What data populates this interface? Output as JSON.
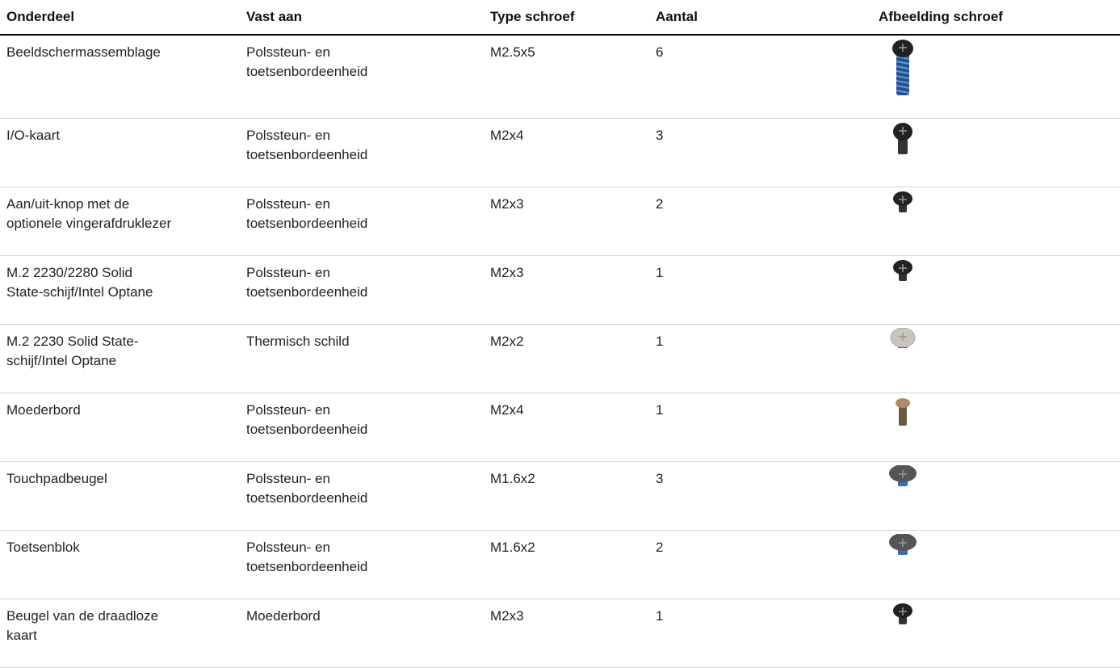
{
  "table": {
    "header": [
      "Onderdeel",
      "Vast aan",
      "Type schroef",
      "Aantal",
      "Afbeelding schroef"
    ],
    "rows": [
      [
        [
          "Beeldschermassemblage"
        ],
        [
          "Polssteun- en",
          "toetsenbordeenheid"
        ],
        "M2.5x5",
        6
      ],
      [
        [
          "I/O-kaart"
        ],
        [
          "Polssteun- en",
          "toetsenbordeenheid"
        ],
        "M2x4",
        3
      ],
      [
        [
          "Aan/uit-knop met de",
          "optionele vingerafdruklezer"
        ],
        [
          "Polssteun- en",
          "toetsenbordeenheid"
        ],
        "M2x3",
        2
      ],
      [
        [
          "M.2 2230/2280 Solid",
          "State-schijf/Intel Optane"
        ],
        [
          "Polssteun- en",
          "toetsenbordeenheid"
        ],
        "M2x3",
        1
      ],
      [
        [
          "M.2 2230 Solid State-",
          "schijf/Intel Optane"
        ],
        [
          "Thermisch schild"
        ],
        "M2x2",
        1
      ],
      [
        [
          "Moederbord"
        ],
        [
          "Polssteun- en",
          "toetsenbordeenheid"
        ],
        "M2x4",
        1
      ],
      [
        [
          "Touchpadbeugel"
        ],
        [
          "Polssteun- en",
          "toetsenbordeenheid"
        ],
        "M1.6x2",
        3
      ],
      [
        [
          "Toetsenblok"
        ],
        [
          "Polssteun- en",
          "toetsenbordeenheid"
        ],
        "M1.6x2",
        2
      ],
      [
        [
          "Beugel van de draadloze",
          "kaart"
        ],
        [
          "Moederbord"
        ],
        "M2x3",
        1
      ]
    ]
  }
}
